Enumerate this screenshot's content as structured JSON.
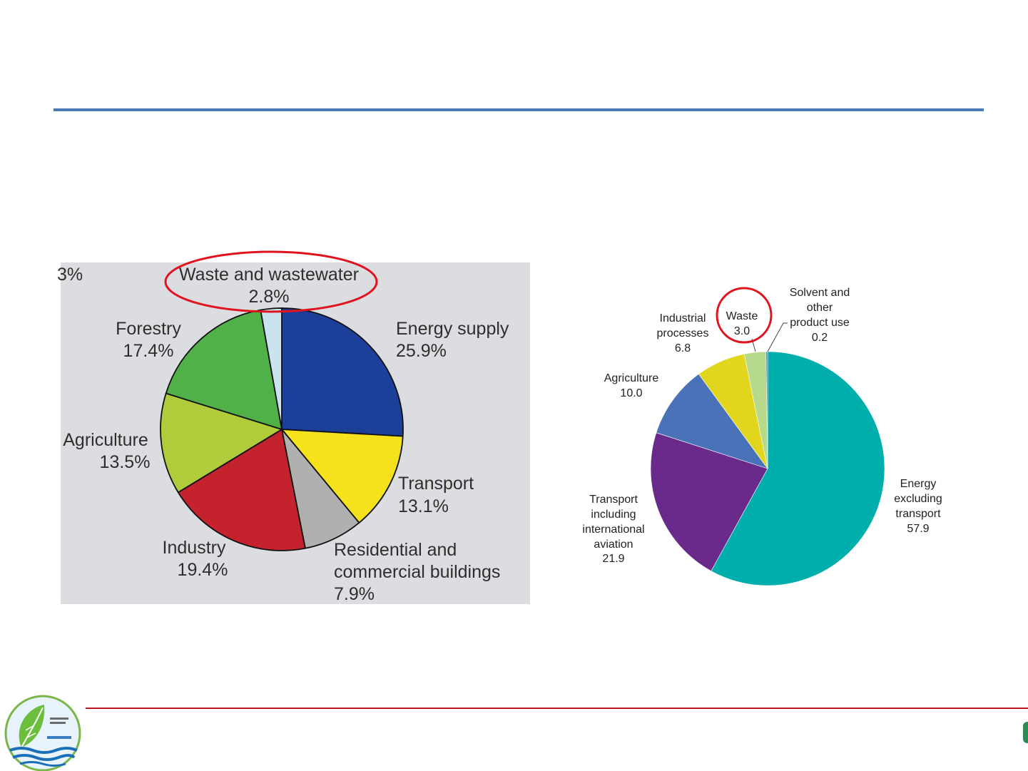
{
  "colors": {
    "top_rule": "#4a7ab5",
    "bottom_rule": "#b8141e",
    "left_chart_bg": "#dcdde0",
    "highlight": "#e0141e"
  },
  "chart_data": [
    {
      "type": "pie",
      "unit": "%",
      "slices": [
        {
          "label": "Energy supply",
          "value": 25.9,
          "display": "25.9%",
          "color": "#1c3f9a"
        },
        {
          "label": "Transport",
          "value": 13.1,
          "display": "13.1%",
          "color": "#f5e11c"
        },
        {
          "label": "Residential and commercial buildings",
          "value": 7.9,
          "display": "7.9%",
          "color": "#b0b0ae"
        },
        {
          "label": "Industry",
          "value": 19.4,
          "display": "19.4%",
          "color": "#c4222d"
        },
        {
          "label": "Agriculture",
          "value": 13.5,
          "display": "13.5%",
          "color": "#b0cc3a"
        },
        {
          "label": "Forestry",
          "value": 17.4,
          "display": "17.4%",
          "color": "#4fb148"
        },
        {
          "label": "Waste and wastewater",
          "value": 2.8,
          "display": "2.8%",
          "color": "#c9e3ef",
          "highlighted": true
        }
      ],
      "cropped_text": "3%"
    },
    {
      "type": "pie",
      "slices": [
        {
          "label": "Energy excluding transport",
          "value": 57.9,
          "display": "57.9",
          "color": "#00aeab"
        },
        {
          "label": "Transport including international aviation",
          "value": 21.9,
          "display": "21.9",
          "color": "#6a2a8c"
        },
        {
          "label": "Agriculture",
          "value": 10.0,
          "display": "10.0",
          "color": "#4a72b8"
        },
        {
          "label": "Industrial processes",
          "value": 6.8,
          "display": "6.8",
          "color": "#e2d51e"
        },
        {
          "label": "Waste",
          "value": 3.0,
          "display": "3.0",
          "color": "#b6d98a",
          "highlighted": true
        },
        {
          "label": "Solvent and other product use",
          "value": 0.2,
          "display": "0.2",
          "color": "#2f6fae"
        }
      ]
    }
  ]
}
